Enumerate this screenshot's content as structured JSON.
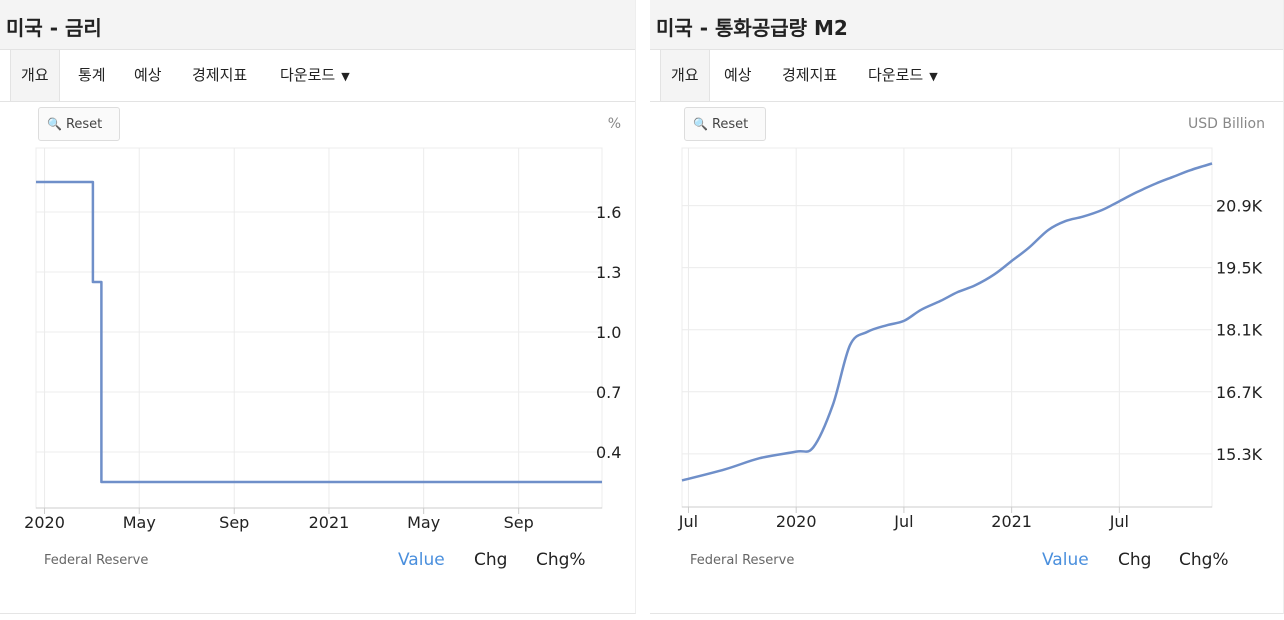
{
  "left": {
    "title": "미국 - 금리",
    "tabs": [
      "개요",
      "통계",
      "예상",
      "경제지표",
      "다운로드"
    ],
    "reset_label": "Reset",
    "unit": "%",
    "source": "Federal Reserve",
    "modes": [
      "Value",
      "Chg",
      "Chg%"
    ]
  },
  "right": {
    "title": "미국 - 통화공급량 M2",
    "tabs": [
      "개요",
      "예상",
      "경제지표",
      "다운로드"
    ],
    "reset_label": "Reset",
    "unit": "USD Billion",
    "source": "Federal Reserve",
    "modes": [
      "Value",
      "Chg",
      "Chg%"
    ]
  },
  "colors": {
    "line": "#6f8fc9",
    "grid": "#ececec",
    "accent": "#4a8fdd"
  },
  "chart_data": [
    {
      "type": "line",
      "title": "미국 - 금리",
      "xlabel": "",
      "ylabel": "%",
      "x_tick_labels": [
        "2020",
        "May",
        "Sep",
        "2021",
        "May",
        "Sep"
      ],
      "y_tick_labels": [
        "0.4",
        "0.7",
        "1.0",
        "1.3",
        "1.6"
      ],
      "x_ticks": [
        2020.0,
        2020.333,
        2020.667,
        2021.0,
        2021.333,
        2021.667
      ],
      "y_ticks": [
        0.4,
        0.7,
        1.0,
        1.3,
        1.6
      ],
      "xlim": [
        2019.97,
        2021.96
      ],
      "ylim": [
        0.12,
        1.92
      ],
      "step": true,
      "x": [
        2019.97,
        2020.17,
        2020.17,
        2020.2,
        2020.2,
        2021.96
      ],
      "y": [
        1.75,
        1.75,
        1.25,
        1.25,
        0.25,
        0.25
      ]
    },
    {
      "type": "line",
      "title": "미국 - 통화공급량 M2",
      "xlabel": "",
      "ylabel": "USD Billion",
      "x_tick_labels": [
        "Jul",
        "2020",
        "Jul",
        "2021",
        "Jul"
      ],
      "y_tick_labels": [
        "15.3K",
        "16.7K",
        "18.1K",
        "19.5K",
        "20.9K"
      ],
      "x_ticks": [
        2019.5,
        2020.0,
        2020.5,
        2021.0,
        2021.5
      ],
      "y_ticks": [
        15.3,
        16.7,
        18.1,
        19.5,
        20.9
      ],
      "xlim": [
        2019.47,
        2021.93
      ],
      "ylim": [
        14.1,
        22.2
      ],
      "x": [
        2019.47,
        2019.67,
        2019.83,
        2020.0,
        2020.08,
        2020.17,
        2020.25,
        2020.33,
        2020.42,
        2020.5,
        2020.58,
        2020.67,
        2020.75,
        2020.83,
        2020.92,
        2021.0,
        2021.08,
        2021.17,
        2021.25,
        2021.33,
        2021.42,
        2021.5,
        2021.58,
        2021.67,
        2021.75,
        2021.83,
        2021.93
      ],
      "y": [
        14.7,
        14.95,
        15.2,
        15.35,
        15.45,
        16.4,
        17.75,
        18.05,
        18.2,
        18.3,
        18.55,
        18.75,
        18.95,
        19.1,
        19.35,
        19.65,
        19.95,
        20.35,
        20.55,
        20.65,
        20.8,
        21.0,
        21.2,
        21.4,
        21.55,
        21.7,
        21.85
      ]
    }
  ]
}
